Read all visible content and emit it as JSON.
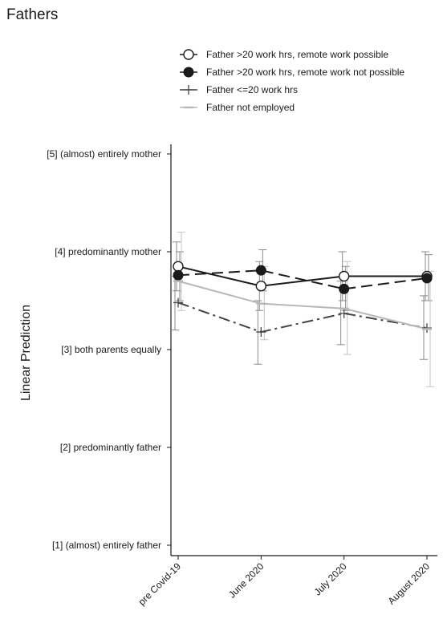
{
  "chart_data": {
    "type": "line",
    "title": "Fathers",
    "ylabel": "Linear Prediction",
    "xlabel": "",
    "categories": [
      "pre Covid-19",
      "June 2020",
      "July 2020",
      "August 2020"
    ],
    "ylim": [
      1,
      5
    ],
    "yticks": [
      {
        "value": 5,
        "label": "[5] (almost) entirely mother"
      },
      {
        "value": 4,
        "label": "[4] predominantly mother"
      },
      {
        "value": 3,
        "label": "[3] both parents equally"
      },
      {
        "value": 2,
        "label": "[2] predominantly father"
      },
      {
        "value": 1,
        "label": "[1] (almost) entirely father"
      }
    ],
    "grid": false,
    "legend_position": "top",
    "series": [
      {
        "name": "Father >20 work hrs, remote work possible",
        "values": [
          3.85,
          3.65,
          3.75,
          3.75
        ],
        "ci_low": [
          3.6,
          3.4,
          3.5,
          3.5
        ],
        "ci_high": [
          4.1,
          3.9,
          4.0,
          4.0
        ],
        "color": "#1a1a1a",
        "line": "solid",
        "marker": "open-circle"
      },
      {
        "name": "Father >20 work hrs, remote work not possible",
        "values": [
          3.76,
          3.81,
          3.62,
          3.73
        ],
        "ci_low": [
          3.5,
          3.6,
          3.4,
          3.5
        ],
        "ci_high": [
          4.0,
          4.02,
          3.85,
          3.97
        ],
        "color": "#1a1a1a",
        "line": "dashed",
        "marker": "filled-circle"
      },
      {
        "name": "Father <=20 work hrs",
        "values": [
          3.48,
          3.18,
          3.37,
          3.22
        ],
        "ci_low": [
          3.2,
          2.85,
          3.05,
          2.9
        ],
        "ci_high": [
          3.75,
          3.5,
          3.7,
          3.55
        ],
        "color": "#444444",
        "line": "dashdot",
        "marker": "plus"
      },
      {
        "name": "Father not employed",
        "values": [
          3.7,
          3.47,
          3.42,
          3.21
        ],
        "ci_low": [
          3.4,
          3.1,
          2.95,
          2.62
        ],
        "ci_high": [
          4.2,
          3.85,
          3.9,
          3.8
        ],
        "color": "#b8b8b8",
        "line": "solid",
        "marker": "dash"
      }
    ]
  }
}
